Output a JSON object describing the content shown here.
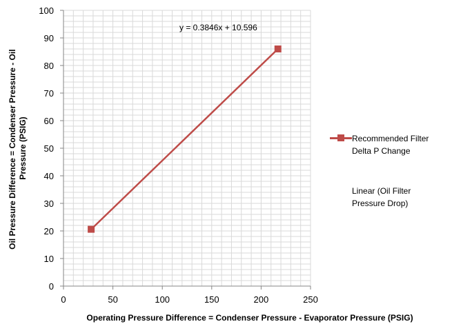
{
  "chart_data": {
    "type": "scatter",
    "xlabel": "Operating Pressure Difference  = Condenser Pressure - Evaporator Pressure (PSIG)",
    "ylabel_lines": [
      "Oil Pressure Difference = Condenser Pressure  - Oil",
      "Pressure (PSIG)"
    ],
    "xlim": [
      0,
      250
    ],
    "ylim": [
      0,
      100
    ],
    "x_ticks": [
      "0",
      "50",
      "100",
      "150",
      "200",
      "250"
    ],
    "y_ticks": [
      "0",
      "10",
      "20",
      "30",
      "40",
      "50",
      "60",
      "70",
      "80",
      "90",
      "100"
    ],
    "x_tick_values": [
      0,
      50,
      100,
      150,
      200,
      250
    ],
    "y_tick_values": [
      0,
      10,
      20,
      30,
      40,
      50,
      60,
      70,
      80,
      90,
      100
    ],
    "grid": true,
    "minor_grid_y_step": 2,
    "series": [
      {
        "name": "Recommended Filter Delta P Change",
        "name_lines": [
          "Recommended Filter",
          "Delta P Change"
        ],
        "marker": "square",
        "x": [
          28,
          217
        ],
        "y": [
          20.6,
          86
        ]
      }
    ],
    "trendline": {
      "name": "Linear (Oil Filter Pressure Drop)",
      "name_lines": [
        "Linear (Oil Filter",
        "Pressure Drop)"
      ],
      "equation": "y = 0.3846x + 10.596"
    },
    "legend_position": "right",
    "colors": {
      "series": "#be4b48",
      "grid": "#d9d9d9",
      "axis": "#868686"
    }
  }
}
